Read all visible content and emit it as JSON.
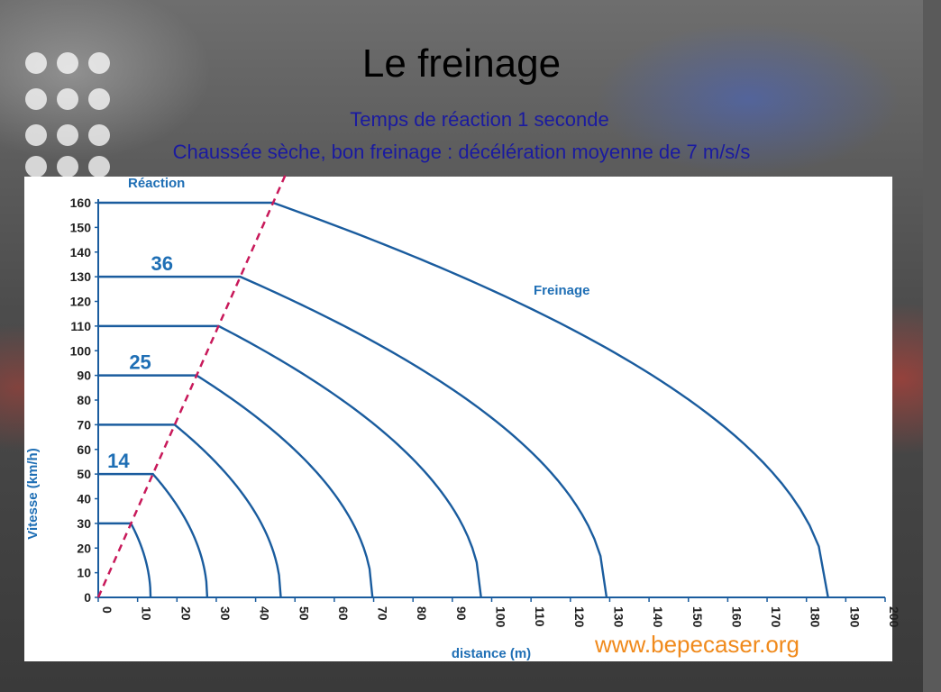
{
  "slide": {
    "title": "Le freinage",
    "subtitle_line1": "Temps de réaction 1 seconde",
    "subtitle_line2": "Chaussée sèche, bon freinage : décélération moyenne de  7 m/s/s",
    "watermark": "www.bepecaser.org"
  },
  "colors": {
    "curve": "#1a5c9e",
    "reaction_line": "#c8195a",
    "axis": "#1a5c9e",
    "label_blue": "#1f6fb5",
    "subtitle": "#1a1aa0",
    "watermark": "#f08a1c"
  },
  "chart_data": {
    "type": "line",
    "title": "",
    "xlabel": "distance (m)",
    "ylabel": "Vitesse (km/h)",
    "xlim": [
      0,
      200
    ],
    "ylim": [
      0,
      160
    ],
    "xticks": [
      0,
      10,
      20,
      30,
      40,
      50,
      60,
      70,
      80,
      90,
      100,
      110,
      120,
      130,
      140,
      150,
      160,
      170,
      180,
      190,
      200
    ],
    "yticks": [
      0,
      10,
      20,
      30,
      40,
      50,
      60,
      70,
      80,
      90,
      100,
      110,
      120,
      130,
      140,
      150,
      160
    ],
    "grid": false,
    "reaction_label": "Réaction",
    "braking_label": "Freinage",
    "reaction_time_s": 1,
    "deceleration_ms2": 7,
    "series": [
      {
        "speed": 30,
        "reaction_distance": 8.3,
        "stop_distance": 13.3
      },
      {
        "speed": 50,
        "reaction_distance": 13.9,
        "stop_distance": 27.7,
        "label": "14"
      },
      {
        "speed": 70,
        "reaction_distance": 19.4,
        "stop_distance": 46.4
      },
      {
        "speed": 90,
        "reaction_distance": 25.0,
        "stop_distance": 69.7,
        "label": "25"
      },
      {
        "speed": 110,
        "reaction_distance": 30.6,
        "stop_distance": 97.3
      },
      {
        "speed": 130,
        "reaction_distance": 36.1,
        "stop_distance": 129.2,
        "label": "36"
      },
      {
        "speed": 160,
        "reaction_distance": 44.4,
        "stop_distance": 185.5
      }
    ]
  }
}
